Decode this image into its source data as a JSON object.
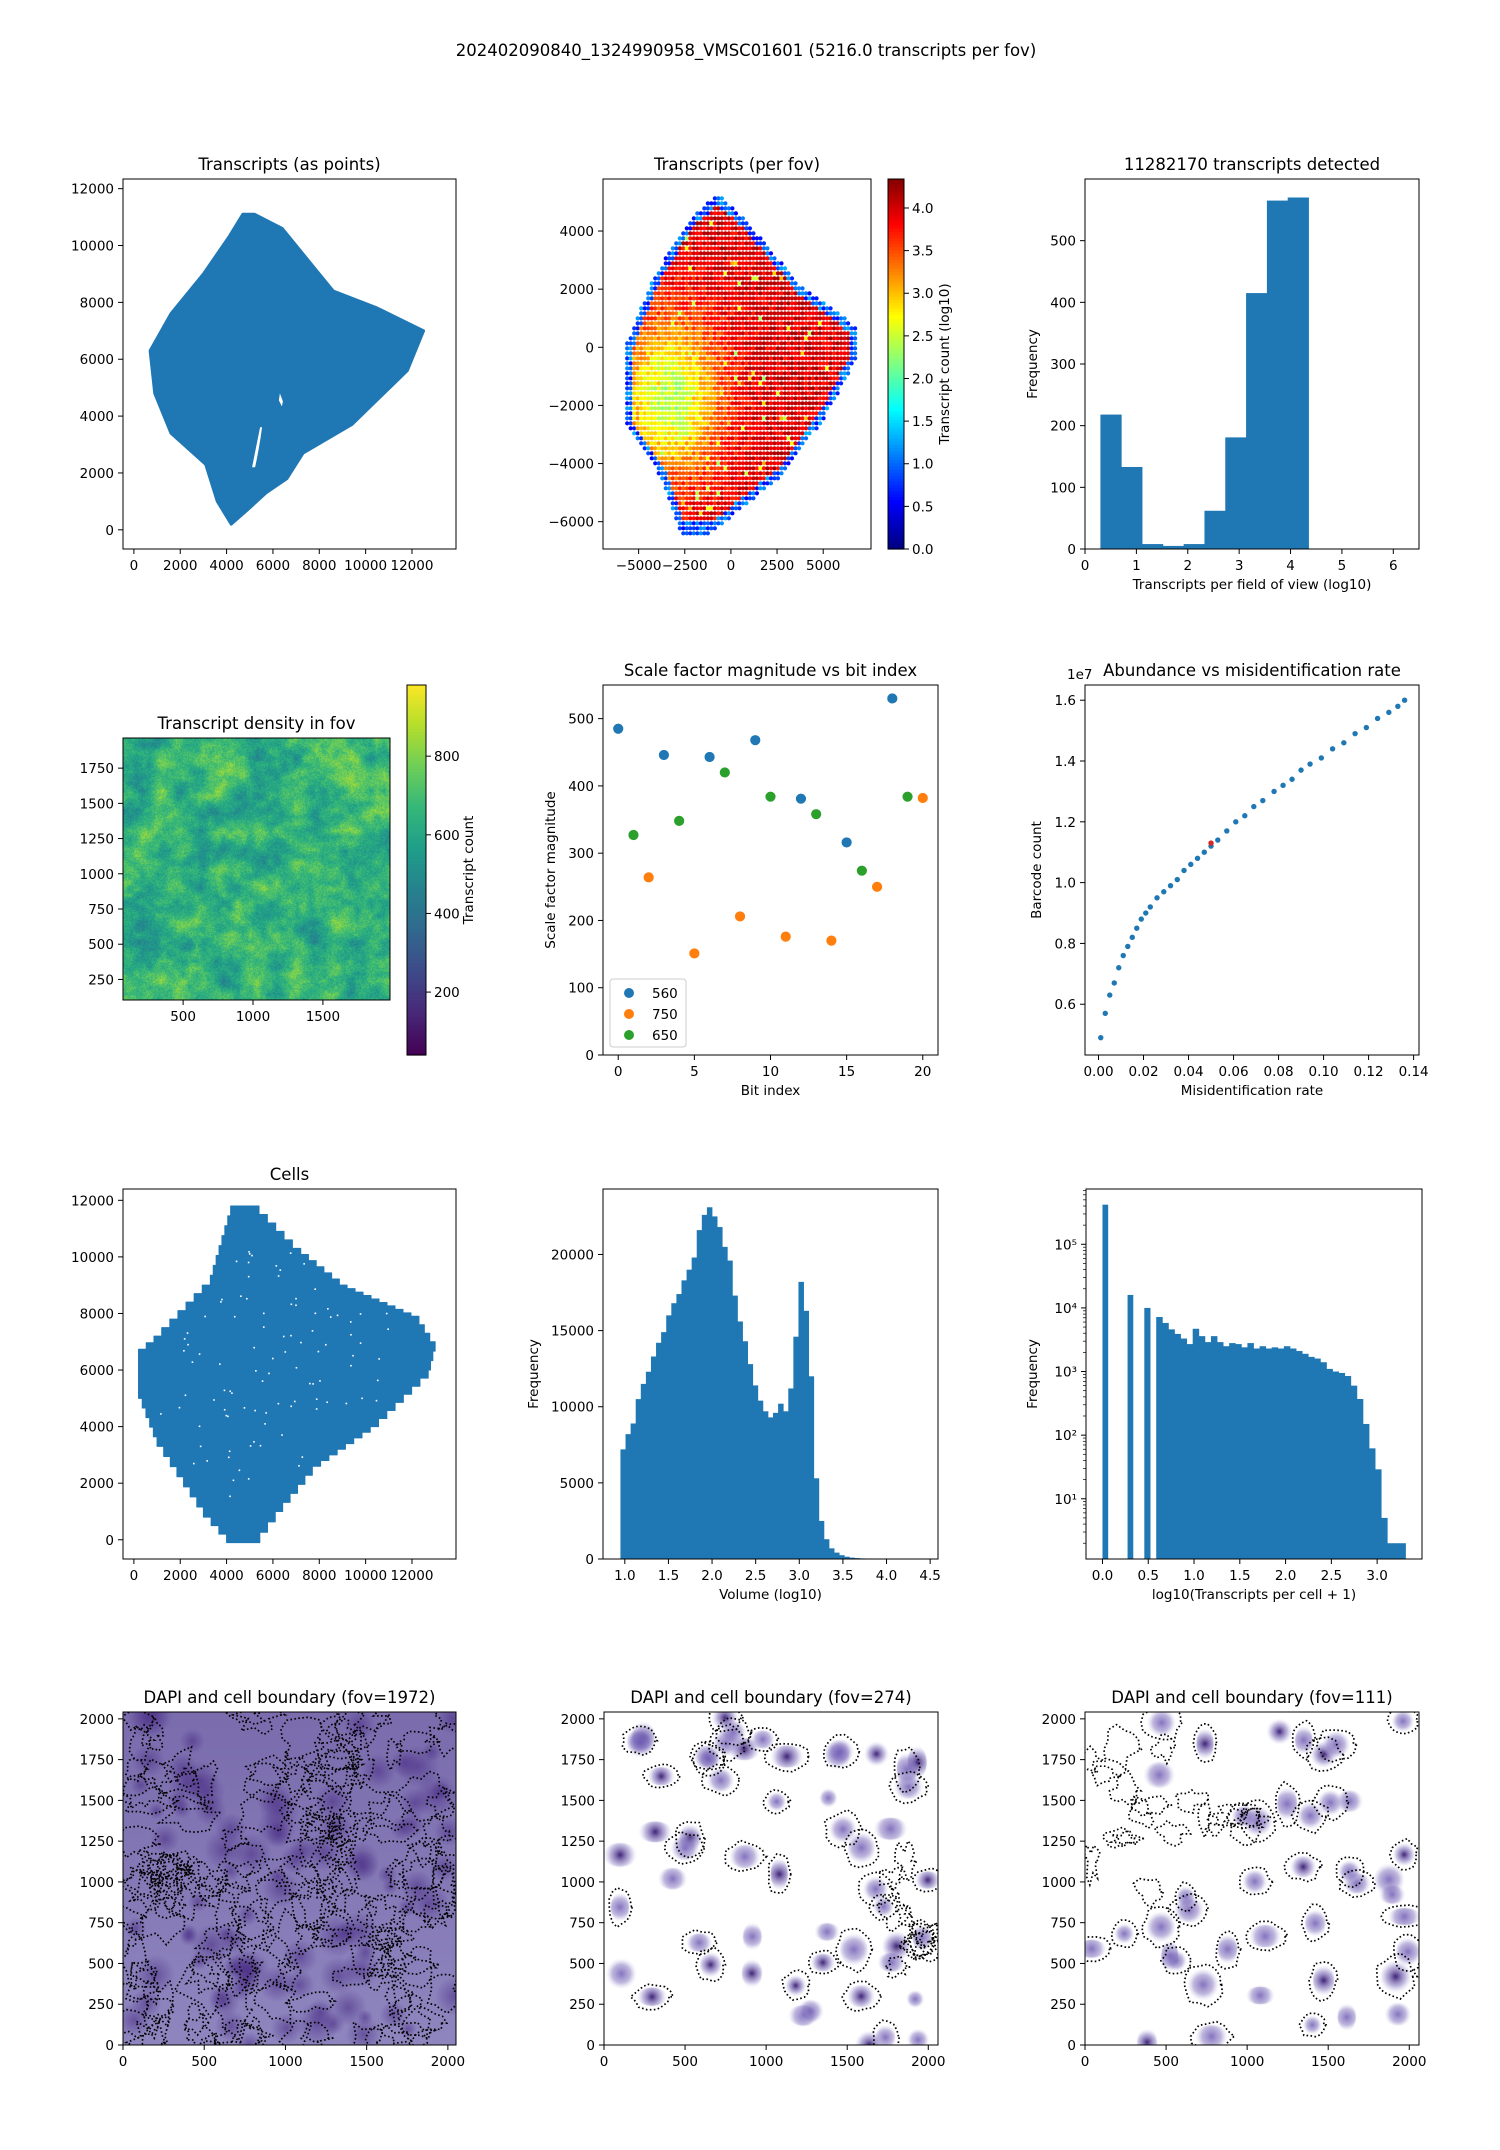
{
  "figure": {
    "suptitle": "202402090840_1324990958_VMSC01601 (5216.0 transcripts per fov)"
  },
  "chart_data": [
    {
      "type": "scatter",
      "title": "Transcripts (as points)",
      "xlabel": "",
      "ylabel": "",
      "xlim": [
        -470,
        13900
      ],
      "ylim": [
        -675,
        12340
      ],
      "xticks": [
        0,
        2000,
        4000,
        6000,
        8000,
        10000,
        12000
      ],
      "xtick_labels": [
        "0",
        "2000",
        "4000",
        "6000",
        "8000",
        "10000",
        "12000"
      ],
      "yticks": [
        0,
        2000,
        4000,
        6000,
        8000,
        10000,
        12000
      ],
      "ytick_labels": [
        "0",
        "2000",
        "4000",
        "6000",
        "8000",
        "10000",
        "12000"
      ],
      "color": "#1f77b4",
      "outline": [
        [
          4200,
          200
        ],
        [
          3600,
          1000
        ],
        [
          3100,
          2300
        ],
        [
          1600,
          3400
        ],
        [
          900,
          4800
        ],
        [
          700,
          6300
        ],
        [
          1600,
          7600
        ],
        [
          3000,
          9000
        ],
        [
          4100,
          10300
        ],
        [
          4700,
          11100
        ],
        [
          5200,
          11100
        ],
        [
          6400,
          10600
        ],
        [
          7700,
          9300
        ],
        [
          8600,
          8400
        ],
        [
          10500,
          7800
        ],
        [
          12500,
          7000
        ],
        [
          11800,
          5600
        ],
        [
          9400,
          3700
        ],
        [
          7300,
          2700
        ],
        [
          6600,
          1800
        ],
        [
          5700,
          1300
        ],
        [
          4900,
          700
        ]
      ]
    },
    {
      "type": "scatter",
      "title": "Transcripts (per fov)",
      "xlabel": "",
      "ylabel": "",
      "xlim": [
        -6930,
        7590
      ],
      "ylim": [
        -6940,
        5790
      ],
      "xticks": [
        -5000,
        -2500,
        0,
        2500,
        5000
      ],
      "xtick_labels": [
        "−5000",
        "−2500",
        "0",
        "2500",
        "5000"
      ],
      "yticks": [
        -6000,
        -4000,
        -2000,
        0,
        2000,
        4000
      ],
      "ytick_labels": [
        "−6000",
        "−4000",
        "−2000",
        "0",
        "2000",
        "4000"
      ],
      "region": [
        [
          -700,
          5250
        ],
        [
          900,
          4300
        ],
        [
          3800,
          2100
        ],
        [
          6800,
          700
        ],
        [
          6800,
          -400
        ],
        [
          5000,
          -2500
        ],
        [
          2600,
          -4500
        ],
        [
          -1100,
          -6400
        ],
        [
          -2700,
          -6400
        ],
        [
          -4000,
          -4200
        ],
        [
          -5700,
          -2700
        ],
        [
          -5800,
          -100
        ],
        [
          -4200,
          2400
        ],
        [
          -2100,
          4500
        ]
      ],
      "value_peak": 4.2,
      "value_low": 2.6,
      "colorbar": {
        "label": "Transcript count (log10)",
        "range": [
          0,
          4.34
        ],
        "cmap": "jet",
        "ticks": [
          0,
          0.5,
          1,
          1.5,
          2,
          2.5,
          3,
          3.5,
          4
        ],
        "tick_labels": [
          "0.0",
          "0.5",
          "1.0",
          "1.5",
          "2.0",
          "2.5",
          "3.0",
          "3.5",
          "4.0"
        ]
      }
    },
    {
      "type": "bar",
      "title": "11282170 transcripts detected",
      "xlabel": "Transcripts per field of view (log10)",
      "ylabel": "Frequency",
      "xlim": [
        0,
        6.5
      ],
      "ylim": [
        0,
        600
      ],
      "xticks": [
        0,
        1,
        2,
        3,
        4,
        5,
        6
      ],
      "xtick_labels": [
        "0",
        "1",
        "2",
        "3",
        "4",
        "5",
        "6"
      ],
      "yticks": [
        0,
        100,
        200,
        300,
        400,
        500
      ],
      "ytick_labels": [
        "0",
        "100",
        "200",
        "300",
        "400",
        "500"
      ],
      "bin_edges": [
        0.3,
        0.705,
        1.11,
        1.515,
        1.92,
        2.325,
        2.73,
        3.135,
        3.54,
        3.945,
        4.35
      ],
      "values": [
        218,
        133,
        8,
        5,
        8,
        62,
        181,
        415,
        565,
        570
      ],
      "color": "#1f77b4"
    },
    {
      "type": "heatmap",
      "title": "Transcript density in fov",
      "xlabel": "",
      "ylabel": "",
      "xlim": [
        70,
        1980
      ],
      "ylim": [
        104,
        1964
      ],
      "xticks": [
        500,
        1000,
        1500
      ],
      "xtick_labels": [
        "500",
        "1000",
        "1500"
      ],
      "yticks": [
        250,
        500,
        750,
        1000,
        1250,
        1500,
        1750
      ],
      "ytick_labels": [
        "250",
        "500",
        "750",
        "1000",
        "1250",
        "1500",
        "1750"
      ],
      "value_mean": 640,
      "colorbar": {
        "label": "Transcript count",
        "range": [
          40,
          981
        ],
        "cmap": "viridis",
        "ticks": [
          200,
          400,
          600,
          800
        ],
        "tick_labels": [
          "200",
          "400",
          "600",
          "800"
        ]
      }
    },
    {
      "type": "scatter",
      "title": "Scale factor magnitude vs bit index",
      "xlabel": "Bit index",
      "ylabel": "Scale factor magnitude",
      "xlim": [
        -1,
        21
      ],
      "ylim": [
        0,
        550
      ],
      "xticks": [
        0,
        5,
        10,
        15,
        20
      ],
      "xtick_labels": [
        "0",
        "5",
        "10",
        "15",
        "20"
      ],
      "yticks": [
        0,
        100,
        200,
        300,
        400,
        500
      ],
      "ytick_labels": [
        "0",
        "100",
        "200",
        "300",
        "400",
        "500"
      ],
      "legend": "lower-left",
      "series": [
        {
          "name": "560",
          "color": "#1f77b4",
          "x": [
            0,
            3,
            6,
            9,
            12,
            15,
            18
          ],
          "y": [
            485,
            446,
            443,
            468,
            381,
            316,
            530
          ]
        },
        {
          "name": "750",
          "color": "#ff7f0e",
          "x": [
            2,
            5,
            8,
            11,
            14,
            17,
            20
          ],
          "y": [
            264,
            151,
            206,
            176,
            170,
            250,
            382
          ]
        },
        {
          "name": "650",
          "color": "#2ca02c",
          "x": [
            1,
            4,
            7,
            10,
            13,
            16,
            19
          ],
          "y": [
            327,
            348,
            420,
            384,
            358,
            274,
            384
          ]
        }
      ]
    },
    {
      "type": "scatter",
      "title": "Abundance vs misidentification rate",
      "xlabel": "Misidentification rate",
      "ylabel": "Barcode count",
      "xlim": [
        -0.006,
        0.1424
      ],
      "ylim": [
        0.433,
        1.65
      ],
      "y_offset_label": "1e7",
      "xticks": [
        0,
        0.02,
        0.04,
        0.06,
        0.08,
        0.1,
        0.12,
        0.14
      ],
      "xtick_labels": [
        "0.00",
        "0.02",
        "0.04",
        "0.06",
        "0.08",
        "0.10",
        "0.12",
        "0.14"
      ],
      "yticks": [
        0.6,
        0.8,
        1.0,
        1.2,
        1.4,
        1.6
      ],
      "ytick_labels": [
        "0.6",
        "0.8",
        "1.0",
        "1.2",
        "1.4",
        "1.6"
      ],
      "color": "#1f77b4",
      "highlight_color": "#d62728",
      "highlight": [
        0.05,
        1.13
      ],
      "x": [
        0.001,
        0.003,
        0.005,
        0.007,
        0.009,
        0.011,
        0.013,
        0.015,
        0.017,
        0.019,
        0.021,
        0.023,
        0.026,
        0.029,
        0.032,
        0.035,
        0.038,
        0.041,
        0.044,
        0.047,
        0.05,
        0.053,
        0.057,
        0.061,
        0.065,
        0.069,
        0.073,
        0.078,
        0.082,
        0.086,
        0.09,
        0.094,
        0.099,
        0.104,
        0.109,
        0.114,
        0.119,
        0.124,
        0.129,
        0.133,
        0.136
      ],
      "y": [
        0.49,
        0.57,
        0.63,
        0.67,
        0.72,
        0.76,
        0.79,
        0.82,
        0.85,
        0.88,
        0.9,
        0.92,
        0.95,
        0.97,
        0.99,
        1.01,
        1.04,
        1.06,
        1.08,
        1.1,
        1.12,
        1.14,
        1.17,
        1.2,
        1.22,
        1.25,
        1.27,
        1.3,
        1.32,
        1.34,
        1.37,
        1.39,
        1.41,
        1.44,
        1.46,
        1.49,
        1.51,
        1.54,
        1.56,
        1.58,
        1.6
      ]
    },
    {
      "type": "scatter",
      "title": "Cells",
      "xlabel": "",
      "ylabel": "",
      "xlim": [
        -470,
        13900
      ],
      "ylim": [
        -680,
        12400
      ],
      "xticks": [
        0,
        2000,
        4000,
        6000,
        8000,
        10000,
        12000
      ],
      "xtick_labels": [
        "0",
        "2000",
        "4000",
        "6000",
        "8000",
        "10000",
        "12000"
      ],
      "yticks": [
        0,
        2000,
        4000,
        6000,
        8000,
        10000,
        12000
      ],
      "ytick_labels": [
        "0",
        "2000",
        "4000",
        "6000",
        "8000",
        "10000",
        "12000"
      ],
      "color": "#1f77b4",
      "outline": [
        [
          4000,
          -100
        ],
        [
          3000,
          800
        ],
        [
          1000,
          3300
        ],
        [
          200,
          5000
        ],
        [
          200,
          6500
        ],
        [
          1200,
          7200
        ],
        [
          3300,
          9000
        ],
        [
          4300,
          11800
        ],
        [
          5400,
          11800
        ],
        [
          7200,
          10300
        ],
        [
          9200,
          9000
        ],
        [
          12300,
          7900
        ],
        [
          13000,
          7000
        ],
        [
          12700,
          6000
        ],
        [
          10200,
          4000
        ],
        [
          7700,
          2600
        ],
        [
          6100,
          1000
        ],
        [
          5100,
          -100
        ]
      ]
    },
    {
      "type": "bar",
      "title": "",
      "xlabel": "Volume (log10)",
      "ylabel": "Frequency",
      "xlim": [
        0.75,
        4.59
      ],
      "ylim": [
        0,
        24300
      ],
      "xticks": [
        1,
        1.5,
        2,
        2.5,
        3,
        3.5,
        4,
        4.5
      ],
      "xtick_labels": [
        "1.0",
        "1.5",
        "2.0",
        "2.5",
        "3.0",
        "3.5",
        "4.0",
        "4.5"
      ],
      "yticks": [
        0,
        5000,
        10000,
        15000,
        20000
      ],
      "ytick_labels": [
        "0",
        "5000",
        "10000",
        "15000",
        "20000"
      ],
      "bin_start": 0.95,
      "bin_width": 0.0583,
      "values": [
        7200,
        8200,
        8900,
        10500,
        11500,
        12300,
        13300,
        14200,
        14900,
        16000,
        16800,
        17400,
        18300,
        19000,
        19800,
        21600,
        22600,
        23100,
        22500,
        21800,
        20500,
        19600,
        17300,
        15600,
        14300,
        12800,
        11400,
        10400,
        9700,
        9300,
        9600,
        10200,
        9700,
        11200,
        14600,
        18200,
        16300,
        12000,
        5300,
        2500,
        1300,
        700,
        420,
        250,
        150,
        90,
        60,
        40,
        30,
        22,
        16,
        12,
        9,
        7,
        5,
        4,
        3,
        2,
        2,
        1
      ],
      "color": "#1f77b4"
    },
    {
      "type": "bar",
      "title": "",
      "xlabel": "log10(Transcripts per cell + 1)",
      "ylabel": "Frequency",
      "yscale": "log",
      "xlim": [
        -0.18,
        3.49
      ],
      "ylim": [
        1.13,
        740000
      ],
      "xticks": [
        0,
        0.5,
        1,
        1.5,
        2,
        2.5,
        3
      ],
      "xtick_labels": [
        "0.0",
        "0.5",
        "1.0",
        "1.5",
        "2.0",
        "2.5",
        "3.0"
      ],
      "yticks": [
        10,
        100,
        1000,
        10000,
        100000
      ],
      "ytick_labels": [
        "10¹",
        "10²",
        "10³",
        "10⁴",
        "10⁵"
      ],
      "isolated_bars": [
        {
          "x0": 0,
          "x1": 0.058,
          "value": 420000
        },
        {
          "x0": 0.274,
          "x1": 0.332,
          "value": 16000
        },
        {
          "x0": 0.457,
          "x1": 0.52,
          "value": 10000
        }
      ],
      "bin_start": 0.587,
      "bin_width": 0.0664,
      "values": [
        7200,
        5800,
        4600,
        3900,
        3300,
        2700,
        4700,
        3600,
        2900,
        3600,
        2900,
        2500,
        2800,
        2700,
        2400,
        2800,
        2300,
        2500,
        2300,
        2400,
        2300,
        2500,
        2300,
        2100,
        1900,
        1700,
        1600,
        1400,
        1100,
        1000,
        950,
        850,
        600,
        370,
        150,
        62,
        29,
        5,
        2,
        2,
        2
      ],
      "color": "#1f77b4"
    },
    {
      "type": "image",
      "title": "DAPI and cell boundary (fov=1972)",
      "xlabel": "",
      "ylabel": "",
      "xlim": [
        0,
        2050
      ],
      "ylim": [
        0,
        2042
      ],
      "xticks": [
        0,
        500,
        1000,
        1500,
        2000
      ],
      "xtick_labels": [
        "0",
        "500",
        "1000",
        "1500",
        "2000"
      ],
      "yticks": [
        0,
        250,
        500,
        750,
        1000,
        1250,
        1500,
        1750,
        2000
      ],
      "ytick_labels": [
        "0",
        "250",
        "500",
        "750",
        "1000",
        "1250",
        "1500",
        "1750",
        "2000"
      ],
      "background": "#7a6cad",
      "nucleus_color": "#4b2f86"
    },
    {
      "type": "image",
      "title": "DAPI and cell boundary (fov=274)",
      "xlabel": "",
      "ylabel": "",
      "xlim": [
        0,
        2060
      ],
      "ylim": [
        0,
        2042
      ],
      "xticks": [
        0,
        500,
        1000,
        1500,
        2000
      ],
      "xtick_labels": [
        "0",
        "500",
        "1000",
        "1500",
        "2000"
      ],
      "yticks": [
        0,
        250,
        500,
        750,
        1000,
        1250,
        1500,
        1750,
        2000
      ],
      "ytick_labels": [
        "0",
        "250",
        "500",
        "750",
        "1000",
        "1250",
        "1500",
        "1750",
        "2000"
      ],
      "background": "#ffffff",
      "nucleus_color": "#5a3fa0"
    },
    {
      "type": "image",
      "title": "DAPI and cell boundary (fov=111)",
      "xlabel": "",
      "ylabel": "",
      "xlim": [
        0,
        2060
      ],
      "ylim": [
        0,
        2042
      ],
      "xticks": [
        0,
        500,
        1000,
        1500,
        2000
      ],
      "xtick_labels": [
        "0",
        "500",
        "1000",
        "1500",
        "2000"
      ],
      "yticks": [
        0,
        250,
        500,
        750,
        1000,
        1250,
        1500,
        1750,
        2000
      ],
      "ytick_labels": [
        "0",
        "250",
        "500",
        "750",
        "1000",
        "1250",
        "1500",
        "1750",
        "2000"
      ],
      "background": "#ffffff",
      "nucleus_color": "#5a3fa0"
    }
  ]
}
